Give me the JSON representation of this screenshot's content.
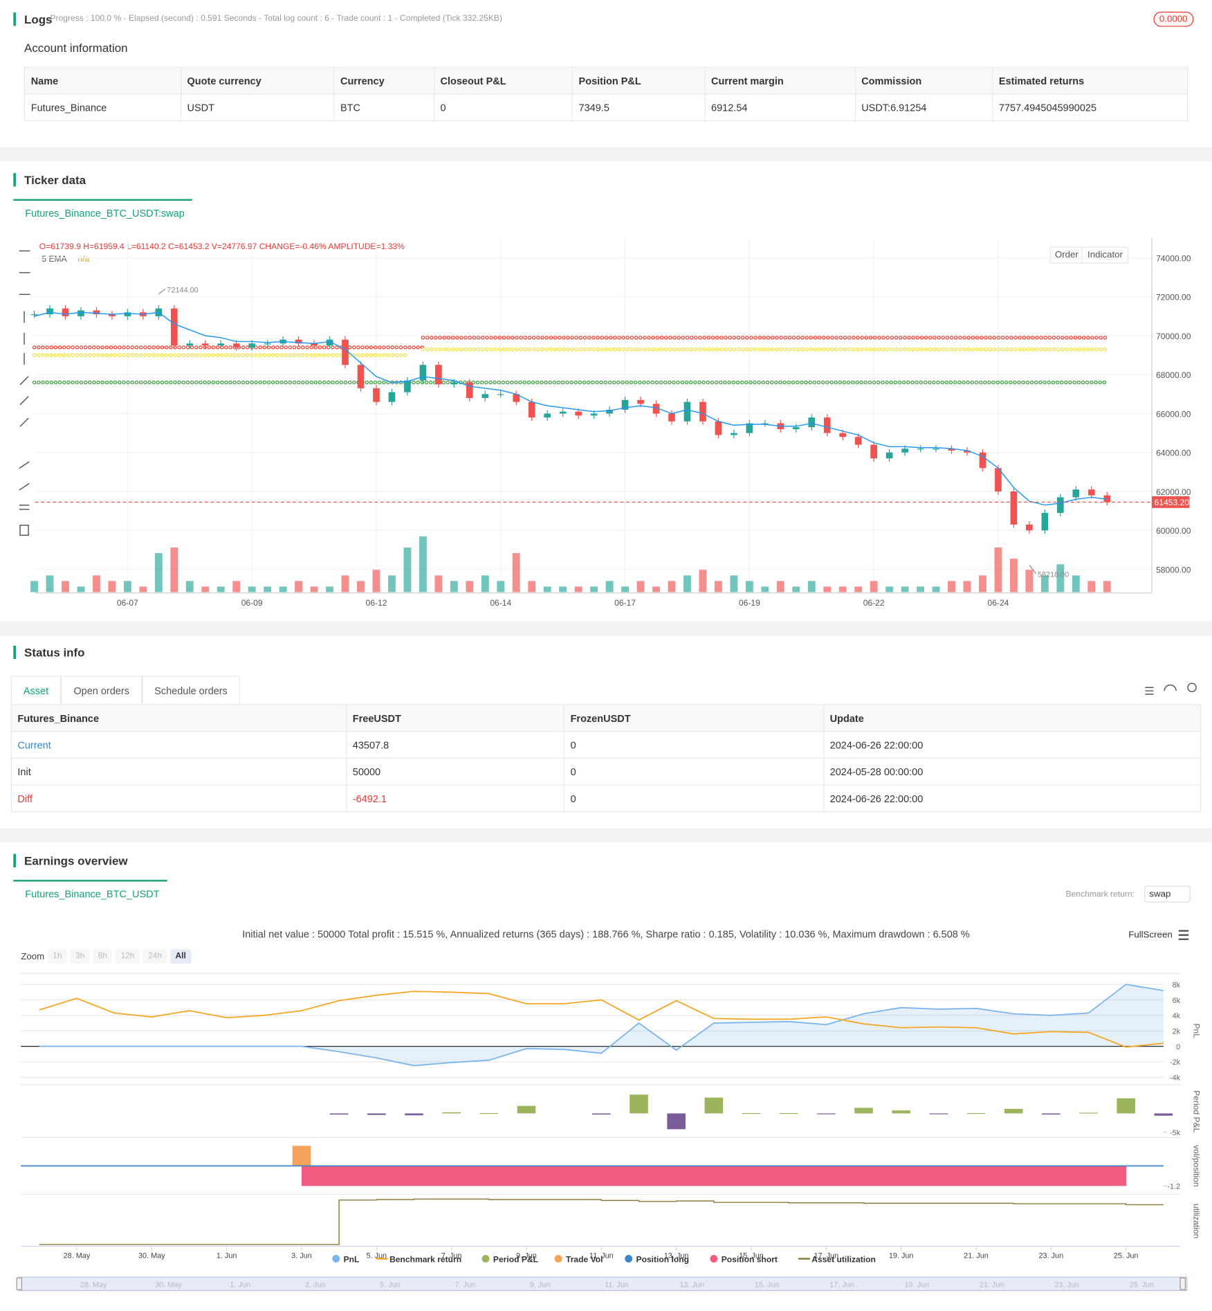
{
  "logs": {
    "title": "Logs",
    "status": "Progress : 100.0 % - Elapsed (second) : 0.591 Seconds - Total log count : 6 - Trade count : 1 - Completed (Tick 332.25KB)",
    "badge": "0.0000"
  },
  "account": {
    "title": "Account information",
    "columns": [
      "Name",
      "Quote currency",
      "Currency",
      "Closeout P&L",
      "Position P&L",
      "Current margin",
      "Commission",
      "Estimated returns"
    ],
    "rows": [
      [
        "Futures_Binance",
        "USDT",
        "BTC",
        "0",
        "7349.5",
        "6912.54",
        "USDT:6.91254",
        "7757.4945045990025"
      ]
    ]
  },
  "ticker": {
    "title": "Ticker data",
    "tab": "Futures_Binance_BTC_USDT:swap",
    "ohlc": "O=61739.9 H=61959.4 L=61140.2 C=61453.2 V=24776.97 CHANGE=-0.46% AMPLITUDE=1.33%",
    "ema_label": "5 EMA",
    "ema_value": "n/a",
    "buttons": [
      "Order",
      "Indicator"
    ],
    "chart": {
      "type": "candlestick",
      "up_color": "#26a69a",
      "down_color": "#ef5350",
      "ema_color": "#2196f3",
      "ylim": [
        57000,
        75000
      ],
      "yticks": [
        {
          "value": 58000,
          "label": "58000.00"
        },
        {
          "value": 60000,
          "label": "60000.00"
        },
        {
          "value": 62000,
          "label": "62000.00"
        },
        {
          "value": 64000,
          "label": "64000.00"
        },
        {
          "value": 66000,
          "label": "66000.00"
        },
        {
          "value": 68000,
          "label": "68000.00"
        },
        {
          "value": 70000,
          "label": "70000.00"
        },
        {
          "value": 72000,
          "label": "72000.00"
        },
        {
          "value": 74000,
          "label": "74000.00"
        }
      ],
      "categories": [
        null,
        null,
        null,
        null,
        null,
        null,
        "06-07",
        null,
        null,
        null,
        null,
        null,
        null,
        null,
        "06-09",
        null,
        null,
        null,
        null,
        null,
        null,
        null,
        "06-12",
        null,
        null,
        null,
        null,
        null,
        null,
        null,
        "06-14",
        null,
        null,
        null,
        null,
        null,
        null,
        null,
        "06-17",
        null,
        null,
        null,
        null,
        null,
        null,
        null,
        "06-19",
        null,
        null,
        null,
        null,
        null,
        null,
        null,
        "06-22",
        null,
        null,
        null,
        null,
        null,
        null,
        null,
        "06-24",
        null,
        null,
        null,
        null,
        null,
        null,
        null
      ],
      "close": [
        71100,
        71400,
        71000,
        71300,
        71100,
        71000,
        71200,
        71000,
        71400,
        69500,
        69600,
        69500,
        69600,
        69400,
        69600,
        69600,
        69800,
        69600,
        69500,
        69800,
        68500,
        67300,
        66600,
        67100,
        67700,
        68500,
        67500,
        67600,
        66800,
        67000,
        67000,
        66600,
        65800,
        66000,
        66100,
        65900,
        66000,
        66200,
        66700,
        66500,
        66000,
        65600,
        66600,
        65600,
        64900,
        65000,
        65500,
        65500,
        65200,
        65300,
        65800,
        65000,
        64800,
        64400,
        63700,
        64000,
        64200,
        64200,
        64200,
        64100,
        64000,
        63200,
        62000,
        60300,
        60000,
        60900,
        61700,
        62100,
        61800,
        61453.2
      ],
      "ema": [
        71000,
        71200,
        71100,
        71200,
        71150,
        71100,
        71150,
        71100,
        71200,
        70600,
        70300,
        70000,
        69900,
        69700,
        69700,
        69650,
        69700,
        69650,
        69600,
        69700,
        69300,
        68600,
        67900,
        67600,
        67650,
        67900,
        67800,
        67700,
        67400,
        67300,
        67200,
        67000,
        66600,
        66400,
        66300,
        66200,
        66100,
        66150,
        66300,
        66400,
        66300,
        66000,
        66200,
        66000,
        65600,
        65400,
        65450,
        65450,
        65350,
        65350,
        65500,
        65300,
        65100,
        64900,
        64500,
        64300,
        64300,
        64250,
        64250,
        64200,
        64100,
        63800,
        63200,
        62200,
        61500,
        61300,
        61400,
        61600,
        61700,
        61600
      ],
      "vlim": [
        0,
        12
      ],
      "volume": [
        2,
        3,
        2,
        1,
        3,
        2,
        2,
        1,
        7,
        8,
        2,
        1,
        1,
        2,
        1,
        1,
        1,
        2,
        1,
        1,
        3,
        2,
        4,
        3,
        8,
        10,
        3,
        2,
        2,
        3,
        2,
        7,
        2,
        1,
        1,
        1,
        1,
        2,
        1,
        2,
        1,
        2,
        3,
        4,
        2,
        3,
        2,
        1,
        2,
        1,
        2,
        1,
        1,
        1,
        2,
        1,
        1,
        1,
        1,
        2,
        2,
        3,
        8,
        6,
        4,
        3,
        5,
        3,
        2,
        2
      ],
      "levels": [
        {
          "color": "#f44336",
          "value": 69400,
          "start": 0,
          "end": 25
        },
        {
          "color": "#f44336",
          "value": 69900,
          "start": 25,
          "end": 69
        },
        {
          "color": "#f5e33b",
          "value": 69000,
          "start": 0,
          "end": 24
        },
        {
          "color": "#f5e33b",
          "value": 69300,
          "start": 25,
          "end": 69
        },
        {
          "color": "#43a047",
          "value": 67600,
          "start": 0,
          "end": 69
        }
      ],
      "last_price": {
        "value": 61453.2,
        "label": "61453.20"
      },
      "high": {
        "value": 72144,
        "label": "72144.00",
        "index": 8
      },
      "low": {
        "value": 58218,
        "label": "58218.00",
        "index": 64
      }
    }
  },
  "status": {
    "title": "Status info",
    "tabs": [
      "Asset",
      "Open orders",
      "Schedule orders"
    ],
    "columns": [
      "Futures_Binance",
      "FreeUSDT",
      "FrozenUSDT",
      "Update"
    ],
    "rows": [
      [
        "Current",
        "43507.8",
        "0",
        "2024-06-26 22:00:00"
      ],
      [
        "Init",
        "50000",
        "0",
        "2024-05-28 00:00:00"
      ],
      [
        "Diff",
        "-6492.1",
        "0",
        "2024-06-26 22:00:00"
      ]
    ]
  },
  "earnings": {
    "title": "Earnings overview",
    "tab": "Futures_Binance_BTC_USDT",
    "benchmark_label": "Benchmark return:",
    "benchmark_value": "swap",
    "stats": "Initial net value : 50000 Total profit : 15.515 %, Annualized returns (365 days) : 188.766 %, Sharpe ratio : 0.185, Volatility : 10.036 %, Maximum drawdown : 6.508 %",
    "fullscreen": "FullScreen",
    "zoom_label": "Zoom",
    "zoom": [
      "1h",
      "3h",
      "8h",
      "12h",
      "24h",
      "All"
    ],
    "chart": {
      "type": "line",
      "categories": [
        null,
        "28. May",
        null,
        "30. May",
        null,
        "1. Jun",
        null,
        "3. Jun",
        null,
        "5. Jun",
        null,
        "7. Jun",
        null,
        "9. Jun",
        null,
        "11. Jun",
        null,
        "13. Jun",
        null,
        "15. Jun",
        null,
        "17. Jun",
        null,
        "19. Jun",
        null,
        "21. Jun",
        null,
        "23. Jun",
        null,
        "25. Jun",
        null
      ],
      "panels": [
        {
          "title": "PnL",
          "ylim": [
            -4000,
            8000
          ],
          "yticks": [
            {
              "value": -4000,
              "label": "-4k"
            },
            {
              "value": -2000,
              "label": "-2k"
            },
            0,
            {
              "value": 2000,
              "label": "2k"
            },
            {
              "value": 4000,
              "label": "4k"
            },
            {
              "value": 6000,
              "label": "6k"
            },
            {
              "value": 8000,
              "label": "8k"
            }
          ]
        },
        {
          "title": "Period P&L",
          "ylim": [
            -5500,
            6500
          ],
          "yticks": [
            {
              "value": -5000,
              "label": "-5k"
            }
          ]
        },
        {
          "title": "vol/position",
          "ylim": [
            -1.5,
            1.5
          ],
          "yticks": [
            -1.2
          ]
        },
        {
          "title": "utilization",
          "ylim": [
            0,
            1
          ],
          "yticks": []
        }
      ],
      "series": [
        {
          "name": "PnL",
          "color": "#7cb5ec",
          "panel": 0,
          "values": [
            0,
            0,
            0,
            0,
            0,
            0,
            0,
            0,
            -700,
            -1500,
            -2500,
            -2100,
            -1800,
            -300,
            -400,
            -900,
            3000,
            -500,
            3000,
            3100,
            3200,
            2800,
            4200,
            5000,
            4800,
            4900,
            4200,
            4000,
            4300,
            8000,
            7200
          ]
        },
        {
          "name": "Benchmark return",
          "color": "#f5a623",
          "panel": 0,
          "values": [
            4700,
            6200,
            4300,
            3800,
            4600,
            3700,
            4000,
            4600,
            5900,
            6600,
            7100,
            7000,
            6800,
            5500,
            5500,
            6000,
            3400,
            5900,
            3600,
            3500,
            3500,
            3800,
            2900,
            2400,
            2500,
            2400,
            1600,
            1900,
            1800,
            -100,
            400
          ]
        },
        {
          "name": "Period P&L",
          "color": "#9cb55d",
          "negative_color": "#7a5c99",
          "panel": 1,
          "values": [
            null,
            null,
            null,
            null,
            null,
            null,
            null,
            null,
            -300,
            -400,
            -500,
            300,
            100,
            2000,
            null,
            -300,
            5000,
            -4200,
            4200,
            100,
            100,
            -200,
            1500,
            800,
            -100,
            100,
            1200,
            -300,
            200,
            4000,
            -600
          ]
        },
        {
          "name": "Trade Vol",
          "color": "#f7a35c",
          "panel": 2,
          "values": [
            null,
            null,
            null,
            null,
            null,
            null,
            null,
            1.2,
            null,
            null,
            null,
            null,
            null,
            null,
            null,
            null,
            null,
            null,
            null,
            null,
            null,
            null,
            null,
            null,
            null,
            null,
            null,
            null,
            null,
            null,
            null
          ]
        },
        {
          "name": "Position long",
          "color": "#3a86c8",
          "panel": 2,
          "values": [
            0,
            0,
            0,
            0,
            0,
            0,
            0,
            0,
            0,
            0,
            0,
            0,
            0,
            0,
            0,
            0,
            0,
            0,
            0,
            0,
            0,
            0,
            0,
            0,
            0,
            0,
            0,
            0,
            0,
            0,
            0
          ]
        },
        {
          "name": "Position short",
          "color": "#f15c80",
          "panel": 2,
          "values": [
            null,
            null,
            null,
            null,
            null,
            null,
            null,
            -1.2,
            -1.2,
            -1.2,
            -1.2,
            -1.2,
            -1.2,
            -1.2,
            -1.2,
            -1.2,
            -1.2,
            -1.2,
            -1.2,
            -1.2,
            -1.2,
            -1.2,
            -1.2,
            -1.2,
            -1.2,
            -1.2,
            -1.2,
            -1.2,
            -1.2,
            null,
            null
          ]
        },
        {
          "name": "Asset utilization",
          "color": "#8c7a3c",
          "panel": 3,
          "values": [
            0,
            0,
            0,
            0,
            0,
            0,
            0,
            0,
            0.95,
            0.96,
            0.97,
            0.97,
            0.96,
            0.96,
            0.96,
            0.94,
            0.92,
            0.93,
            0.9,
            0.9,
            0.89,
            0.89,
            0.88,
            0.88,
            0.88,
            0.88,
            0.87,
            0.87,
            0.87,
            0.85,
            0.85
          ]
        }
      ]
    }
  }
}
